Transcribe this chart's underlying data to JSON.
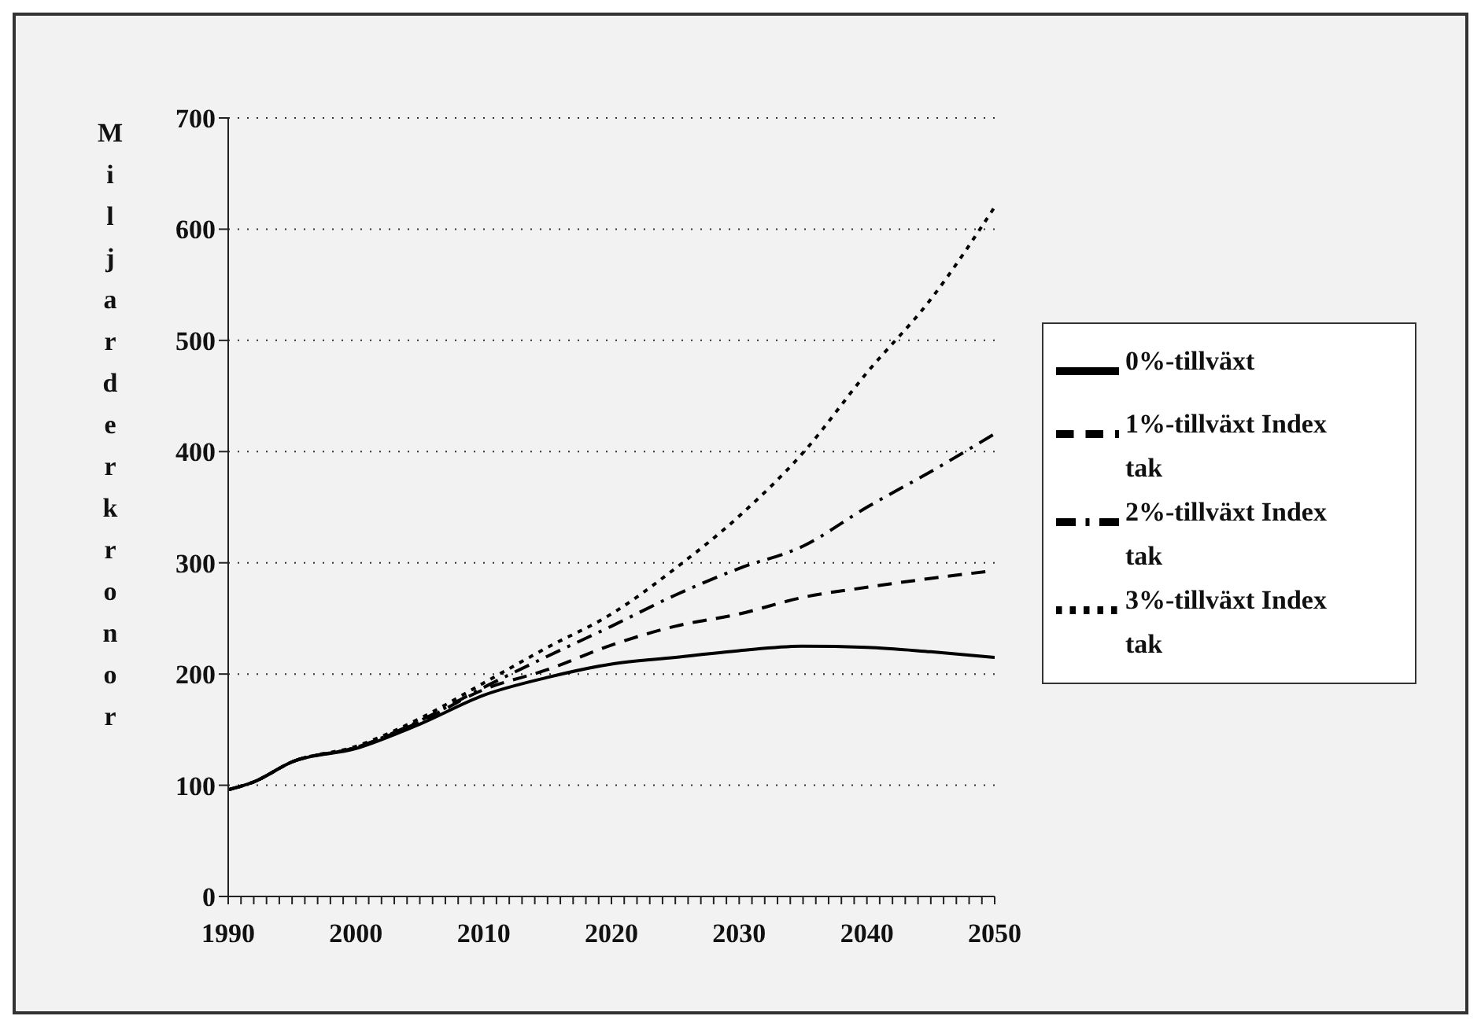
{
  "chart_data": {
    "type": "line",
    "ylabel": "Miljarder kronor",
    "x": [
      1990,
      1992,
      1995,
      2000,
      2005,
      2010,
      2015,
      2020,
      2025,
      2030,
      2035,
      2040,
      2045,
      2050
    ],
    "series": [
      {
        "name": "0%-tillväxt",
        "color": "#000000",
        "line_style": "solid",
        "values": [
          96,
          103,
          121,
          133,
          155,
          181,
          197,
          209,
          215,
          221,
          225,
          224,
          220,
          215
        ]
      },
      {
        "name": "1%-tillväxt Index tak",
        "color": "#000000",
        "line_style": "dashed",
        "values": [
          96,
          103,
          121,
          134,
          157,
          186,
          204,
          226,
          243,
          254,
          269,
          278,
          286,
          293
        ]
      },
      {
        "name": "2%-tillväxt Index tak",
        "color": "#000000",
        "line_style": "dashdot",
        "values": [
          96,
          103,
          121,
          134,
          158,
          188,
          216,
          243,
          271,
          295,
          315,
          350,
          382,
          416
        ]
      },
      {
        "name": "3%-tillväxt Index tak",
        "color": "#000000",
        "line_style": "dotted",
        "values": [
          96,
          103,
          121,
          135,
          160,
          192,
          224,
          254,
          295,
          342,
          399,
          471,
          537,
          620
        ]
      }
    ],
    "xlim": [
      1990,
      2050
    ],
    "xticks": [
      1990,
      {
        "value": 1991,
        "label": null
      },
      {
        "value": 1992,
        "label": null
      },
      {
        "value": 1993,
        "label": null
      },
      {
        "value": 1994,
        "label": null
      },
      {
        "value": 1995,
        "label": null
      },
      {
        "value": 1996,
        "label": null
      },
      {
        "value": 1997,
        "label": null
      },
      {
        "value": 1998,
        "label": null
      },
      {
        "value": 1999,
        "label": null
      },
      2000,
      {
        "value": 2001,
        "label": null
      },
      {
        "value": 2002,
        "label": null
      },
      {
        "value": 2003,
        "label": null
      },
      {
        "value": 2004,
        "label": null
      },
      {
        "value": 2005,
        "label": null
      },
      {
        "value": 2006,
        "label": null
      },
      {
        "value": 2007,
        "label": null
      },
      {
        "value": 2008,
        "label": null
      },
      {
        "value": 2009,
        "label": null
      },
      2010,
      {
        "value": 2011,
        "label": null
      },
      {
        "value": 2012,
        "label": null
      },
      {
        "value": 2013,
        "label": null
      },
      {
        "value": 2014,
        "label": null
      },
      {
        "value": 2015,
        "label": null
      },
      {
        "value": 2016,
        "label": null
      },
      {
        "value": 2017,
        "label": null
      },
      {
        "value": 2018,
        "label": null
      },
      {
        "value": 2019,
        "label": null
      },
      2020,
      {
        "value": 2021,
        "label": null
      },
      {
        "value": 2022,
        "label": null
      },
      {
        "value": 2023,
        "label": null
      },
      {
        "value": 2024,
        "label": null
      },
      {
        "value": 2025,
        "label": null
      },
      {
        "value": 2026,
        "label": null
      },
      {
        "value": 2027,
        "label": null
      },
      {
        "value": 2028,
        "label": null
      },
      {
        "value": 2029,
        "label": null
      },
      2030,
      {
        "value": 2031,
        "label": null
      },
      {
        "value": 2032,
        "label": null
      },
      {
        "value": 2033,
        "label": null
      },
      {
        "value": 2034,
        "label": null
      },
      {
        "value": 2035,
        "label": null
      },
      {
        "value": 2036,
        "label": null
      },
      {
        "value": 2037,
        "label": null
      },
      {
        "value": 2038,
        "label": null
      },
      {
        "value": 2039,
        "label": null
      },
      2040,
      {
        "value": 2041,
        "label": null
      },
      {
        "value": 2042,
        "label": null
      },
      {
        "value": 2043,
        "label": null
      },
      {
        "value": 2044,
        "label": null
      },
      {
        "value": 2045,
        "label": null
      },
      {
        "value": 2046,
        "label": null
      },
      {
        "value": 2047,
        "label": null
      },
      {
        "value": 2048,
        "label": null
      },
      {
        "value": 2049,
        "label": null
      },
      2050
    ],
    "ylim": [
      0,
      700
    ],
    "yticks": [
      0,
      100,
      200,
      300,
      400,
      500,
      600,
      700
    ],
    "grid": "y",
    "legend": "right",
    "marker": "none"
  }
}
